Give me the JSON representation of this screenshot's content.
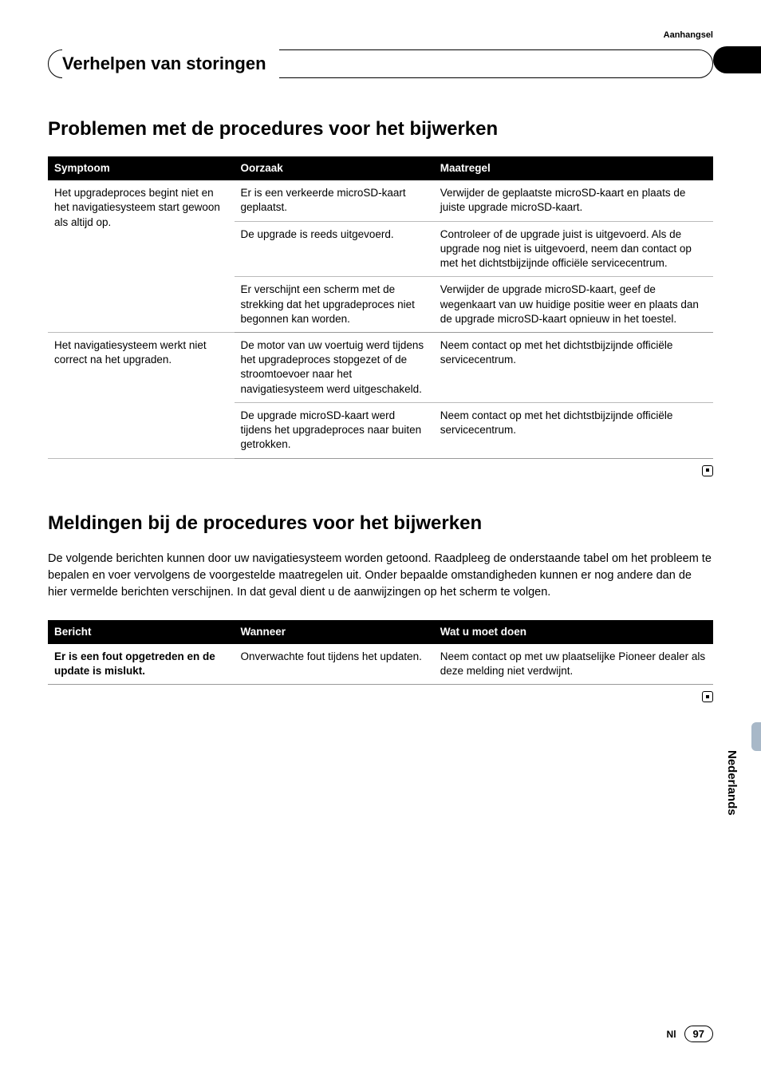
{
  "appendix_label": "Aanhangsel",
  "section_header": "Verhelpen van storingen",
  "heading1": "Problemen met de procedures voor het bijwerken",
  "table1": {
    "headers": {
      "c1": "Symptoom",
      "c2": "Oorzaak",
      "c3": "Maatregel"
    },
    "rows": [
      {
        "symptom": "Het upgradeproces begint niet en het navigatiesysteem start gewoon als altijd op.",
        "cause": "Er is een verkeerde microSD-kaart geplaatst.",
        "action": "Verwijder de geplaatste microSD-kaart en plaats de juiste upgrade microSD-kaart."
      },
      {
        "symptom": "",
        "cause": "De upgrade is reeds uitgevoerd.",
        "action": "Controleer of de upgrade juist is uitgevoerd. Als de upgrade nog niet is uitgevoerd, neem dan contact op met het dichtstbijzijnde officiële servicecentrum."
      },
      {
        "symptom": "",
        "cause": "Er verschijnt een scherm met de strekking dat het upgradeproces niet begonnen kan worden.",
        "action": "Verwijder de upgrade microSD-kaart, geef de wegenkaart van uw huidige positie weer en plaats dan de upgrade microSD-kaart opnieuw in het toestel."
      },
      {
        "symptom": "Het navigatiesysteem werkt niet correct na het upgraden.",
        "cause": "De motor van uw voertuig werd tijdens het upgradeproces stopgezet of de stroomtoevoer naar het navigatiesysteem werd uitgeschakeld.",
        "action": "Neem contact op met het dichtstbijzijnde officiële servicecentrum."
      },
      {
        "symptom": "",
        "cause": "De upgrade microSD-kaart werd tijdens het upgradeproces naar buiten getrokken.",
        "action": "Neem contact op met het dichtstbijzijnde officiële servicecentrum."
      }
    ]
  },
  "heading2": "Meldingen bij de procedures voor het bijwerken",
  "intro": "De volgende berichten kunnen door uw navigatiesysteem worden getoond. Raadpleeg de onderstaande tabel om het probleem te bepalen en voer vervolgens de voorgestelde maatregelen uit. Onder bepaalde omstandigheden kunnen er nog andere dan de hier vermelde berichten verschijnen. In dat geval dient u de aanwijzingen op het scherm te volgen.",
  "table2": {
    "headers": {
      "c1": "Bericht",
      "c2": "Wanneer",
      "c3": "Wat u moet doen"
    },
    "rows": [
      {
        "msg": "Er is een fout opgetreden en de update is mislukt.",
        "when": "Onverwachte fout tijdens het updaten.",
        "todo": "Neem contact op met uw plaatselijke Pioneer dealer als deze melding niet verdwijnt."
      }
    ]
  },
  "side_language": "Nederlands",
  "footer_lang": "Nl",
  "page_number": "97",
  "colors": {
    "text": "#000000",
    "bg": "#ffffff",
    "table_header_bg": "#000000",
    "table_header_fg": "#ffffff",
    "rule": "#999999",
    "side_accent": "#a8b8c8"
  }
}
